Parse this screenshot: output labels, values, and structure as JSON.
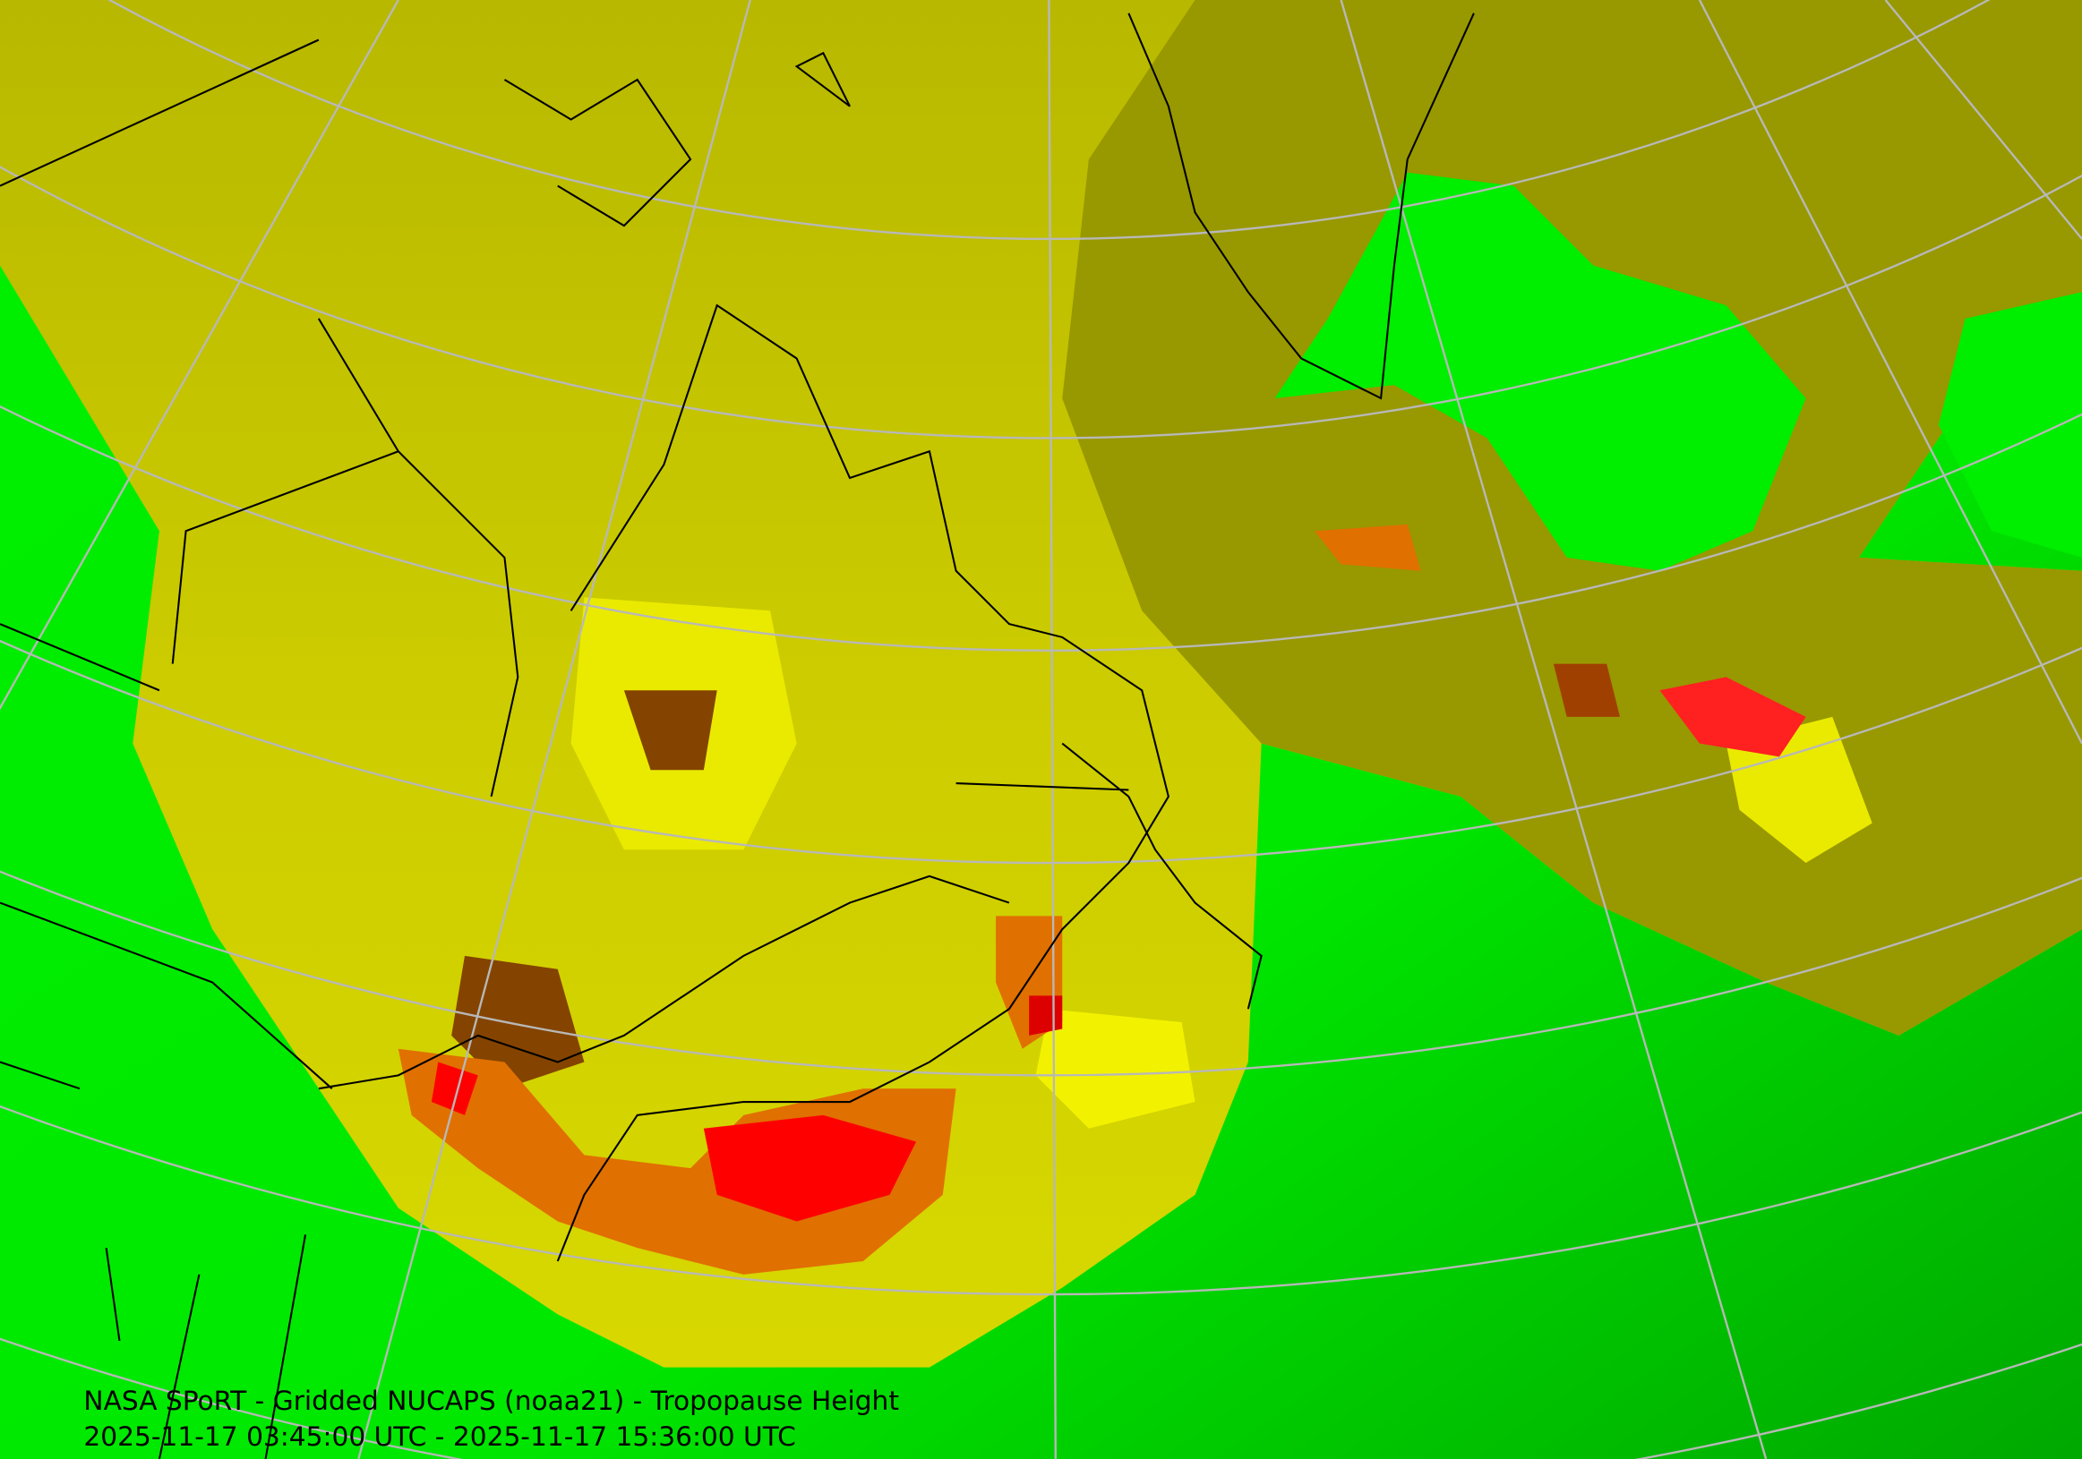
{
  "title": "NASA SPoRT - Gridded NUCAPS (noaa21) - Tropopause Height",
  "time_range": "2025-11-17 03:45:00 UTC - 2025-11-17 15:36:00 UTC"
}
